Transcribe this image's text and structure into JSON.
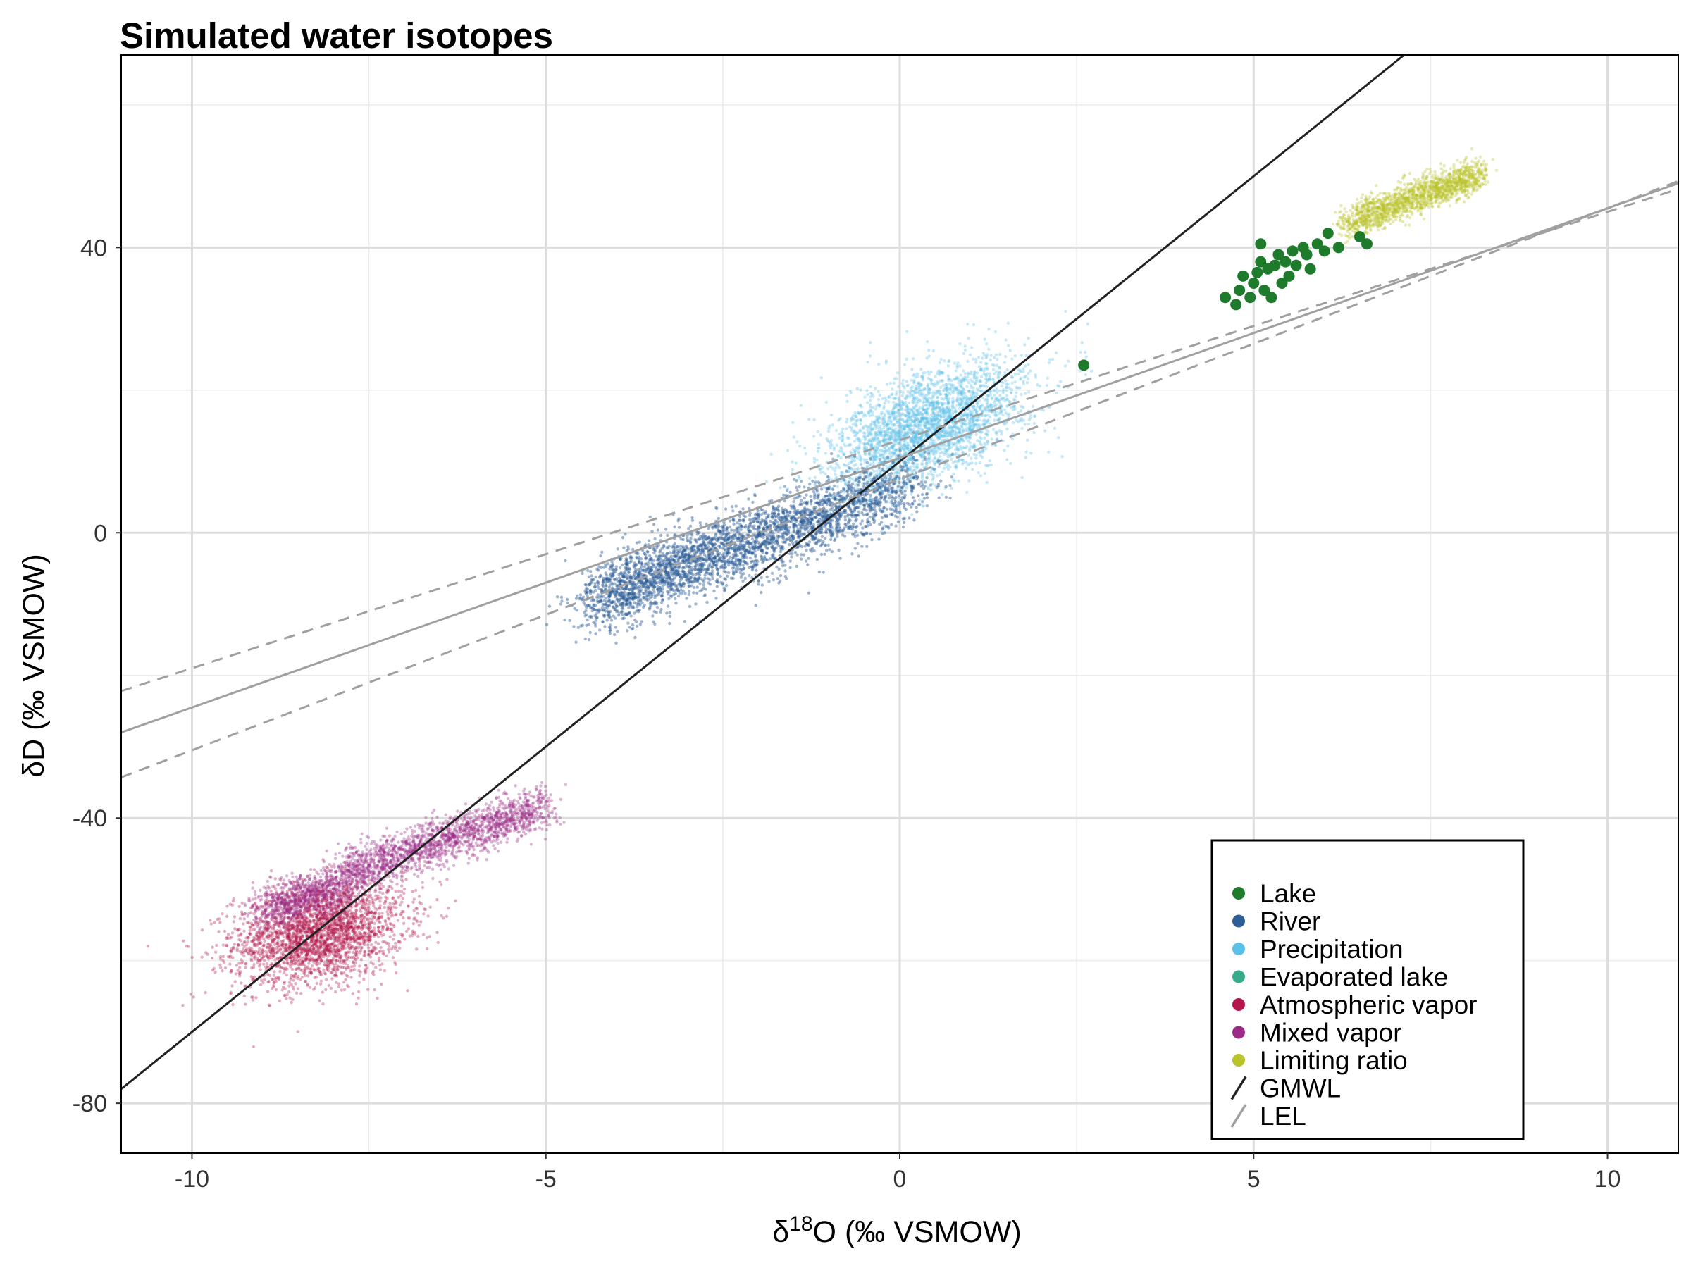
{
  "chart_data": {
    "type": "scatter",
    "title": "Simulated water isotopes",
    "xlabel": "δ18O (‰ VSMOW)",
    "xlabel_parts": {
      "prefix": "δ",
      "sup": "18",
      "suffix": "O (‰ VSMOW)"
    },
    "ylabel": "δD (‰ VSMOW)",
    "xlim": [
      -11,
      11
    ],
    "ylim": [
      -87,
      67
    ],
    "x_ticks": [
      -10,
      -5,
      0,
      5,
      10
    ],
    "x_tick_labels": [
      "-10",
      "-5",
      "0",
      "5",
      "10"
    ],
    "y_ticks": [
      -80,
      -40,
      0,
      40
    ],
    "y_tick_labels": [
      "-80",
      "-40",
      "0",
      "40"
    ],
    "grid": true,
    "legend_position": "bottom-right",
    "series": [
      {
        "name": "Lake",
        "color": "#1e7b2b",
        "points": [
          [
            4.6,
            33
          ],
          [
            4.75,
            32
          ],
          [
            4.8,
            34
          ],
          [
            4.85,
            36
          ],
          [
            4.95,
            33
          ],
          [
            5.0,
            35
          ],
          [
            5.05,
            36.5
          ],
          [
            5.1,
            38
          ],
          [
            5.15,
            34
          ],
          [
            5.2,
            37
          ],
          [
            5.25,
            33
          ],
          [
            5.3,
            37.5
          ],
          [
            5.35,
            39
          ],
          [
            5.4,
            35
          ],
          [
            5.45,
            38
          ],
          [
            5.5,
            36
          ],
          [
            5.55,
            39.5
          ],
          [
            5.6,
            37.5
          ],
          [
            5.7,
            40
          ],
          [
            5.75,
            39
          ],
          [
            5.8,
            37
          ],
          [
            5.9,
            40.5
          ],
          [
            6.0,
            39.5
          ],
          [
            6.05,
            42
          ],
          [
            6.2,
            40
          ],
          [
            6.5,
            41.5
          ],
          [
            6.6,
            40.5
          ],
          [
            5.1,
            40.5
          ],
          [
            2.6,
            23.5
          ]
        ]
      },
      {
        "name": "River",
        "color": "#2d5e96",
        "cloud": {
          "x_range": [
            -4.9,
            0.3
          ],
          "y_at_x": "3.5*x + 6",
          "spread": 3.0
        }
      },
      {
        "name": "Precipitation",
        "color": "#5bc1e8",
        "cloud": {
          "center": [
            0.5,
            16
          ],
          "x_range": [
            -1.5,
            2.5
          ],
          "spread": 4.5
        }
      },
      {
        "name": "Evaporated lake",
        "color": "#3aaa8c",
        "cloud": null
      },
      {
        "name": "Atmospheric vapor",
        "color": "#b3174a",
        "cloud": {
          "center": [
            -8.2,
            -56
          ],
          "x_range": [
            -10,
            -6.5
          ],
          "spread": 4.0
        }
      },
      {
        "name": "Mixed vapor",
        "color": "#9c2a86",
        "cloud": {
          "x_range": [
            -9,
            -5
          ],
          "y_at_x": "3.2*x - 25",
          "spread": 2.0
        }
      },
      {
        "name": "Limiting ratio",
        "color": "#b9c32a",
        "cloud": {
          "x_range": [
            6.2,
            8.3
          ],
          "y_at_x": "3.5*x + 21",
          "spread": 1.5
        }
      }
    ],
    "lines": [
      {
        "name": "GMWL",
        "color": "#222222",
        "slope": 8,
        "intercept": 10,
        "dash": "solid"
      },
      {
        "name": "LEL",
        "color": "#a0a0a0",
        "slope": 3.5,
        "intercept": 10.5,
        "dash": "solid"
      },
      {
        "name": "LEL-upper",
        "color": "#a0a0a0",
        "slope": 3.2,
        "intercept": 13.0,
        "dash": "dashed"
      },
      {
        "name": "LEL-lower",
        "color": "#a0a0a0",
        "slope": 3.8,
        "intercept": 7.5,
        "dash": "dashed"
      }
    ],
    "legend": [
      {
        "label": "Lake",
        "kind": "point",
        "color": "#1e7b2b"
      },
      {
        "label": "River",
        "kind": "point",
        "color": "#2d5e96"
      },
      {
        "label": "Precipitation",
        "kind": "point",
        "color": "#5bc1e8"
      },
      {
        "label": "Evaporated lake",
        "kind": "point",
        "color": "#3aaa8c"
      },
      {
        "label": "Atmospheric vapor",
        "kind": "point",
        "color": "#b3174a"
      },
      {
        "label": "Mixed vapor",
        "kind": "point",
        "color": "#9c2a86"
      },
      {
        "label": "Limiting ratio",
        "kind": "point",
        "color": "#b9c32a"
      },
      {
        "label": "GMWL",
        "kind": "line",
        "color": "#222222"
      },
      {
        "label": "LEL",
        "kind": "line",
        "color": "#a0a0a0"
      }
    ]
  }
}
